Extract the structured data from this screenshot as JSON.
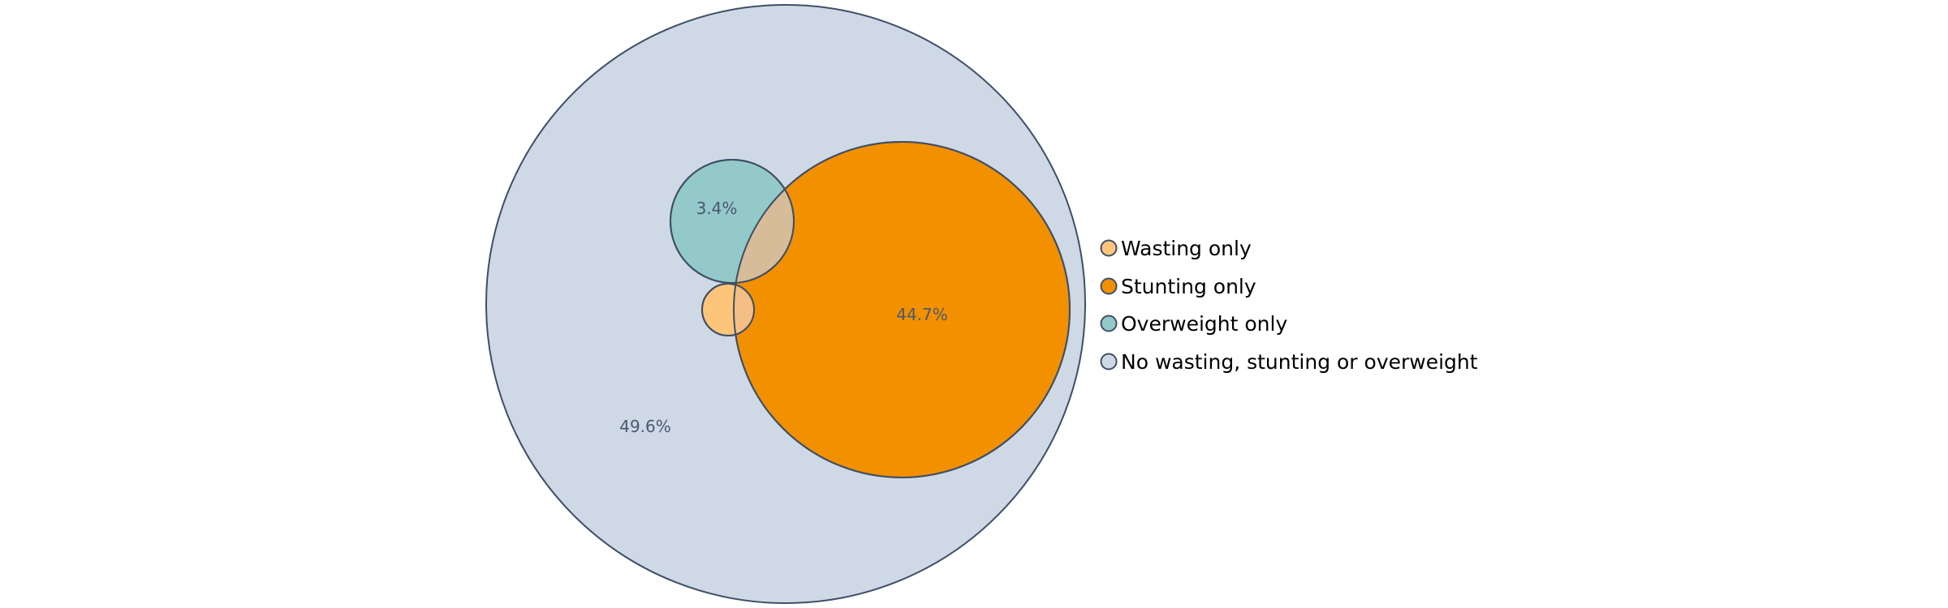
{
  "chart_data": {
    "type": "venn",
    "title": "",
    "sets": [
      {
        "name": "Wasting only",
        "color": "#fdc57a"
      },
      {
        "name": "Stunting only",
        "color": "#f39000"
      },
      {
        "name": "Overweight only",
        "color": "#93cac9"
      },
      {
        "name": "No wasting, stunting or overweight",
        "color": "#cfd8e5"
      }
    ],
    "labels": [
      {
        "set": "No wasting, stunting or overweight",
        "value": "49.6%"
      },
      {
        "set": "Stunting only",
        "value": "44.7%"
      },
      {
        "set": "Overweight only",
        "value": "3.4%"
      }
    ],
    "overlap_colors": {
      "stunting_overweight": "#d6bc99",
      "wasting_stunting": "#f4bf84"
    },
    "outline_color": "#3e4f66",
    "label_color": "#4a5870",
    "legend_position": "right"
  }
}
